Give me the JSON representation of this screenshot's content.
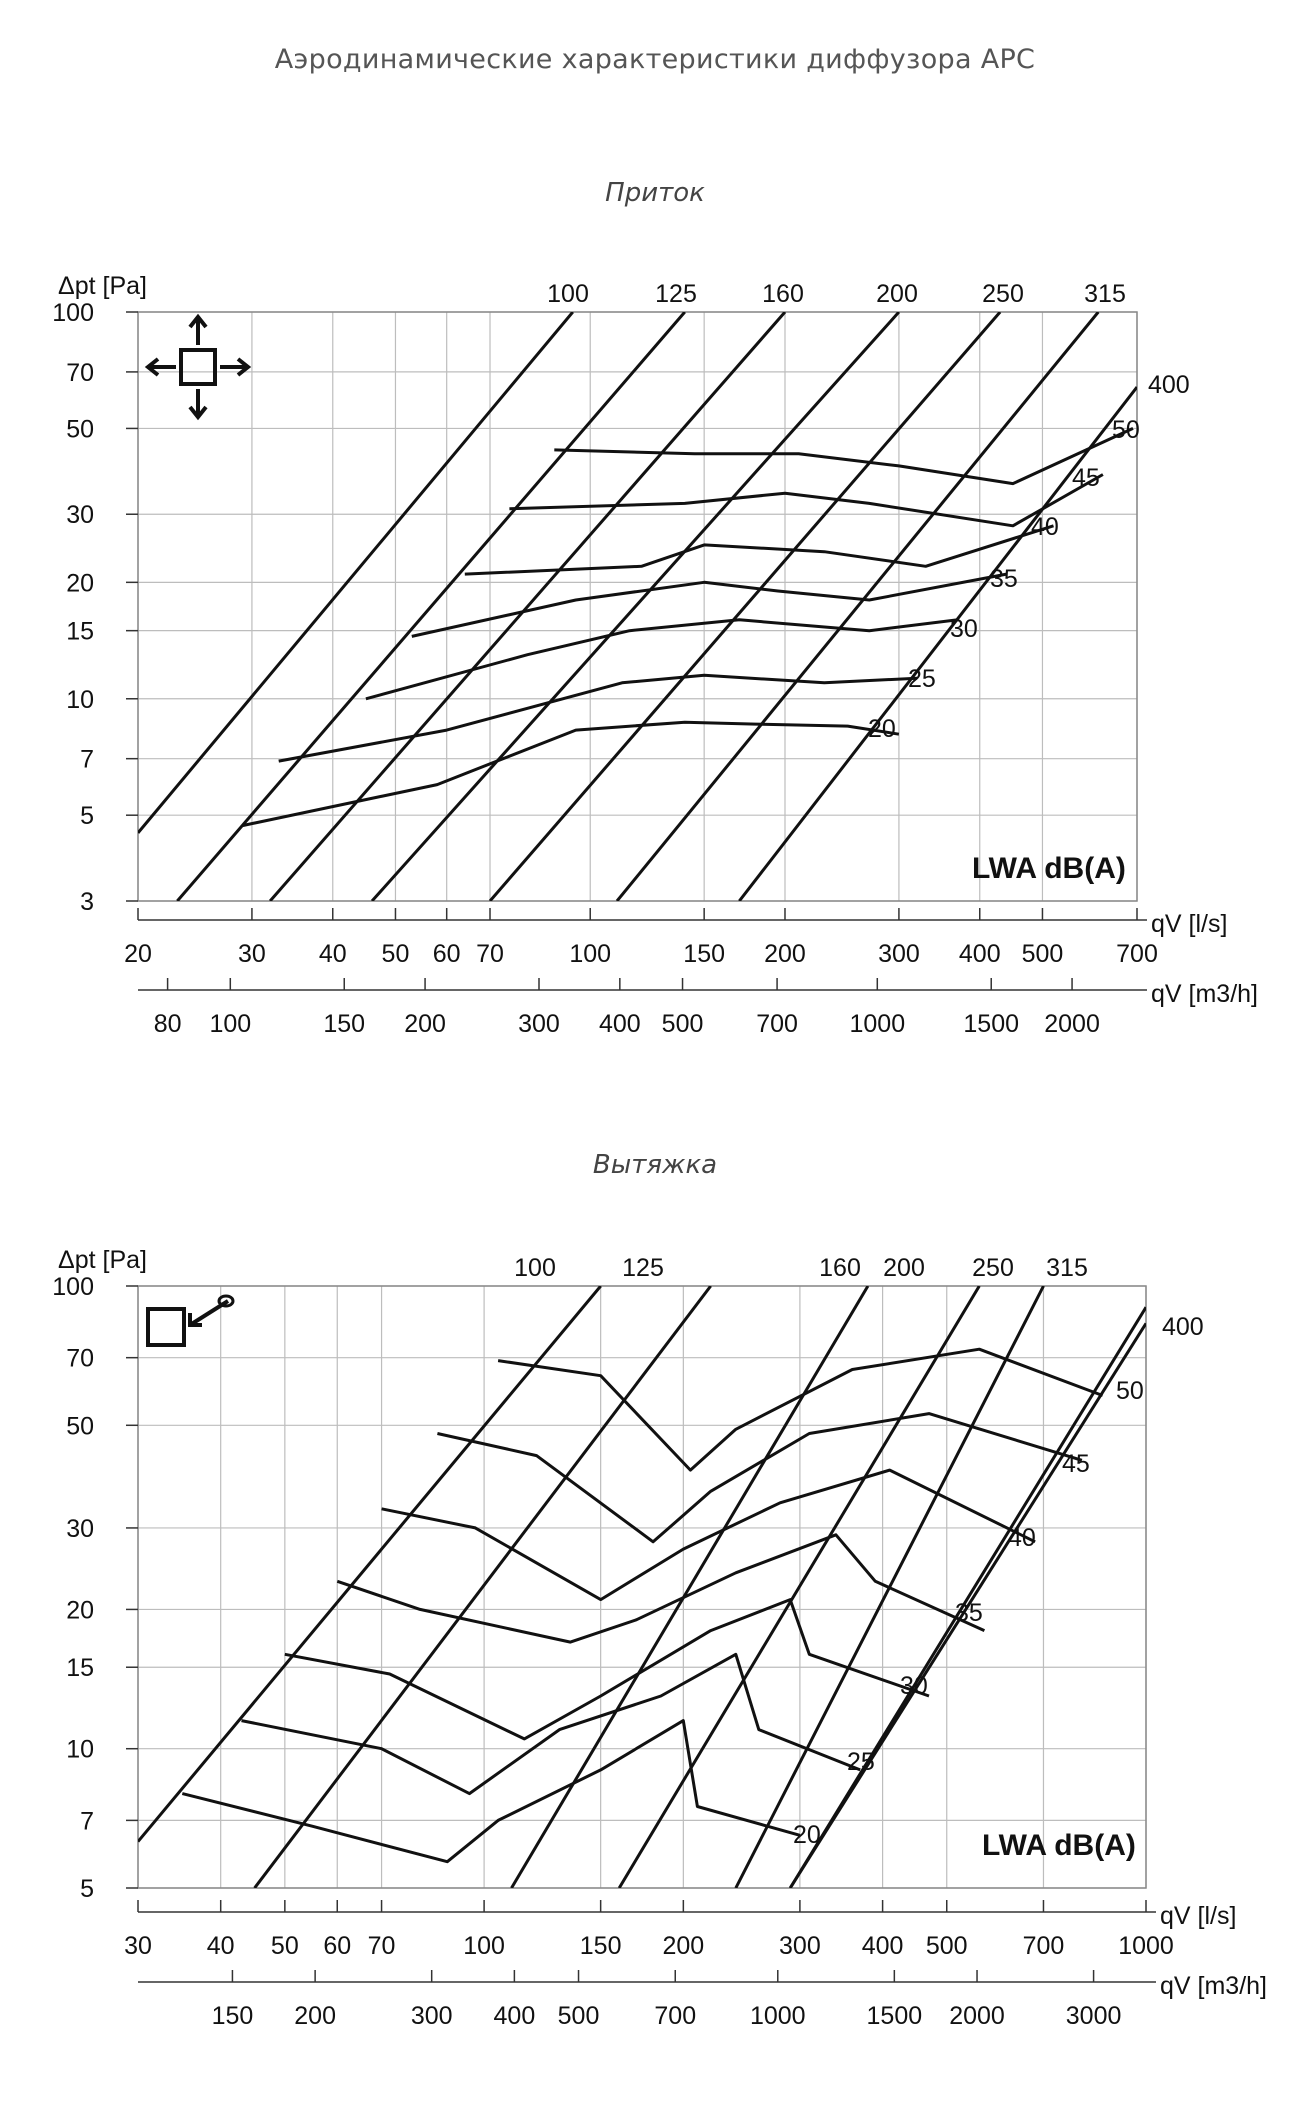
{
  "page_title": "Аэродинамические характеристики диффузора АРС",
  "sections": [
    {
      "title": "Приток"
    },
    {
      "title": "Вытяжка"
    }
  ],
  "chart_data": [
    {
      "type": "line",
      "title": "Приток",
      "ylabel": "Δpt [Pa]",
      "xlabel": "qV [l/s]",
      "x2label": "qV [m3/h]",
      "ylim": [
        3,
        100
      ],
      "xlim": [
        20,
        700
      ],
      "yscale": "log",
      "xscale": "log",
      "grid": true,
      "annotation": "LWA dB(A)",
      "icon": "supply-four-way-arrows-icon",
      "y_ticks": [
        3,
        5,
        7,
        10,
        15,
        20,
        30,
        50,
        70,
        100
      ],
      "x_ticks": [
        20,
        30,
        40,
        50,
        60,
        70,
        100,
        150,
        200,
        300,
        400,
        500,
        700
      ],
      "x2_ticks": [
        80,
        100,
        150,
        200,
        300,
        400,
        500,
        700,
        1000,
        1500,
        2000
      ],
      "size_lines": [
        {
          "name": "100",
          "points": [
            [
              20,
              4.5
            ],
            [
              94,
              100
            ]
          ]
        },
        {
          "name": "125",
          "points": [
            [
              23,
              3
            ],
            [
              140,
              100
            ]
          ]
        },
        {
          "name": "160",
          "points": [
            [
              32,
              3
            ],
            [
              200,
              100
            ]
          ]
        },
        {
          "name": "200",
          "points": [
            [
              46,
              3
            ],
            [
              300,
              100
            ]
          ]
        },
        {
          "name": "250",
          "points": [
            [
              70,
              3
            ],
            [
              430,
              100
            ]
          ]
        },
        {
          "name": "315",
          "points": [
            [
              110,
              3
            ],
            [
              610,
              100
            ]
          ]
        },
        {
          "name": "400",
          "points": [
            [
              170,
              3
            ],
            [
              700,
              64
            ]
          ]
        }
      ],
      "noise_lines": [
        {
          "name": "20",
          "points": [
            [
              29,
              4.7
            ],
            [
              58,
              6
            ],
            [
              95,
              8.3
            ],
            [
              140,
              8.7
            ],
            [
              180,
              8.6
            ],
            [
              250,
              8.5
            ],
            [
              300,
              8.1
            ]
          ]
        },
        {
          "name": "25",
          "points": [
            [
              33,
              6.9
            ],
            [
              60,
              8.3
            ],
            [
              112,
              11
            ],
            [
              150,
              11.5
            ],
            [
              230,
              11
            ],
            [
              320,
              11.3
            ]
          ]
        },
        {
          "name": "30",
          "points": [
            [
              45,
              10
            ],
            [
              80,
              13
            ],
            [
              115,
              15
            ],
            [
              170,
              16
            ],
            [
              270,
              15
            ],
            [
              370,
              16
            ]
          ]
        },
        {
          "name": "35",
          "points": [
            [
              53,
              14.5
            ],
            [
              95,
              18
            ],
            [
              150,
              20
            ],
            [
              195,
              19
            ],
            [
              270,
              18
            ],
            [
              440,
              21
            ]
          ]
        },
        {
          "name": "40",
          "points": [
            [
              64,
              21
            ],
            [
              120,
              22
            ],
            [
              150,
              25
            ],
            [
              230,
              24
            ],
            [
              330,
              22
            ],
            [
              520,
              28
            ]
          ]
        },
        {
          "name": "45",
          "points": [
            [
              75,
              31
            ],
            [
              140,
              32
            ],
            [
              200,
              34
            ],
            [
              270,
              32
            ],
            [
              450,
              28
            ],
            [
              620,
              38
            ]
          ]
        },
        {
          "name": "50",
          "points": [
            [
              88,
              44
            ],
            [
              145,
              43
            ],
            [
              210,
              43
            ],
            [
              300,
              40
            ],
            [
              450,
              36
            ],
            [
              690,
              50
            ]
          ]
        }
      ],
      "top_labels": [
        "100",
        "125",
        "160",
        "200",
        "250",
        "315"
      ],
      "right_labels": [
        "400",
        "50",
        "45",
        "40",
        "35",
        "30",
        "25",
        "20"
      ]
    },
    {
      "type": "line",
      "title": "Вытяжка",
      "ylabel": "Δpt [Pa]",
      "xlabel": "qV [l/s]",
      "x2label": "qV [m3/h]",
      "ylim": [
        5,
        100
      ],
      "xlim": [
        30,
        1000
      ],
      "yscale": "log",
      "xscale": "log",
      "grid": true,
      "annotation": "LWA dB(A)",
      "icon": "extract-arrow-icon",
      "y_ticks": [
        5,
        7,
        10,
        15,
        20,
        30,
        50,
        70,
        100
      ],
      "x_ticks": [
        30,
        40,
        50,
        60,
        70,
        100,
        150,
        200,
        300,
        400,
        500,
        700,
        1000
      ],
      "x2_ticks": [
        150,
        200,
        300,
        400,
        500,
        700,
        1000,
        1500,
        2000,
        3000
      ],
      "size_lines": [
        {
          "name": "100",
          "points": [
            [
              30,
              6.3
            ],
            [
              150,
              100
            ]
          ]
        },
        {
          "name": "125",
          "points": [
            [
              45,
              5
            ],
            [
              220,
              100
            ]
          ]
        },
        {
          "name": "160",
          "points": [
            [
              110,
              5
            ],
            [
              380,
              100
            ]
          ]
        },
        {
          "name": "200",
          "points": [
            [
              160,
              5
            ],
            [
              560,
              100
            ]
          ]
        },
        {
          "name": "250",
          "points": [
            [
              240,
              5
            ],
            [
              700,
              100
            ]
          ]
        },
        {
          "name": "315",
          "points": [
            [
              290,
              5
            ],
            [
              1000,
              90
            ]
          ]
        },
        {
          "name": "400",
          "points": [
            [
              290,
              5
            ],
            [
              1000,
              83
            ]
          ]
        }
      ],
      "noise_lines": [
        {
          "name": "20",
          "points": [
            [
              35,
              8
            ],
            [
              55,
              6.8
            ],
            [
              88,
              5.7
            ],
            [
              105,
              7
            ],
            [
              150,
              9
            ],
            [
              200,
              11.5
            ],
            [
              210,
              7.5
            ],
            [
              300,
              6.5
            ]
          ]
        },
        {
          "name": "25",
          "points": [
            [
              43,
              11.5
            ],
            [
              70,
              10
            ],
            [
              95,
              8
            ],
            [
              130,
              11
            ],
            [
              185,
              13
            ],
            [
              240,
              16
            ],
            [
              260,
              11
            ],
            [
              370,
              9
            ]
          ]
        },
        {
          "name": "30",
          "points": [
            [
              50,
              16
            ],
            [
              72,
              14.5
            ],
            [
              115,
              10.5
            ],
            [
              150,
              13
            ],
            [
              220,
              18
            ],
            [
              290,
              21
            ],
            [
              310,
              16
            ],
            [
              470,
              13
            ]
          ]
        },
        {
          "name": "35",
          "points": [
            [
              60,
              23
            ],
            [
              80,
              20
            ],
            [
              135,
              17
            ],
            [
              170,
              19
            ],
            [
              240,
              24
            ],
            [
              340,
              29
            ],
            [
              390,
              23
            ],
            [
              570,
              18
            ]
          ]
        },
        {
          "name": "40",
          "points": [
            [
              70,
              33
            ],
            [
              97,
              30
            ],
            [
              150,
              21
            ],
            [
              200,
              27
            ],
            [
              280,
              34
            ],
            [
              410,
              40
            ],
            [
              680,
              28
            ]
          ]
        },
        {
          "name": "45",
          "points": [
            [
              85,
              48
            ],
            [
              120,
              43
            ],
            [
              180,
              28
            ],
            [
              220,
              36
            ],
            [
              310,
              48
            ],
            [
              470,
              53
            ],
            [
              800,
              42
            ]
          ]
        },
        {
          "name": "50",
          "points": [
            [
              105,
              69
            ],
            [
              150,
              64
            ],
            [
              205,
              40
            ],
            [
              240,
              49
            ],
            [
              360,
              66
            ],
            [
              560,
              73
            ],
            [
              860,
              58
            ]
          ]
        }
      ],
      "top_labels": [
        "100",
        "125",
        "160",
        "200",
        "250",
        "315"
      ],
      "right_labels": [
        "400",
        "50",
        "45",
        "40",
        "35",
        "30",
        "25",
        "20"
      ]
    }
  ]
}
